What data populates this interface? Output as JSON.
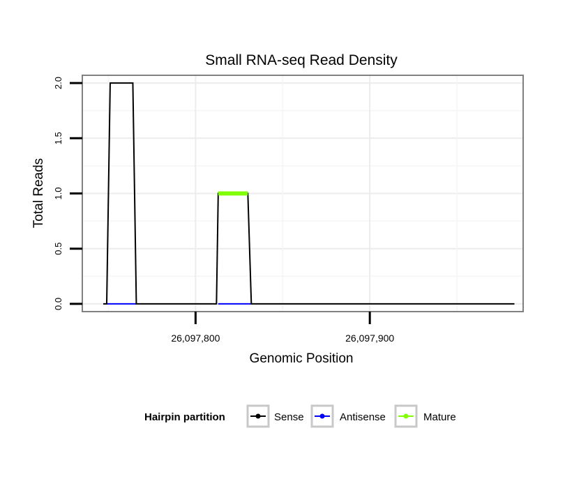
{
  "chart_data": {
    "type": "line",
    "title": "Small RNA-seq Read Density",
    "xlabel": "Genomic Position",
    "ylabel": "Total Reads",
    "xlim": [
      26097735,
      26097988
    ],
    "ylim": [
      -0.07,
      2.07
    ],
    "x_ticks": [
      26097800,
      26097900
    ],
    "x_tick_labels": [
      "26,097,800",
      "26,097,900"
    ],
    "y_ticks": [
      0,
      0.5,
      1,
      1.5,
      2
    ],
    "y_tick_labels": [
      "0.0",
      "0.5",
      "1.0",
      "1.5",
      "2.0"
    ],
    "grid": true,
    "legend": {
      "title": "Hairpin partition",
      "position": "bottom",
      "entries": [
        "Sense",
        "Antisense",
        "Mature"
      ]
    },
    "series": [
      {
        "name": "Sense",
        "color": "#000000",
        "points": [
          [
            26097747,
            0
          ],
          [
            26097749,
            0
          ],
          [
            26097751,
            2
          ],
          [
            26097764,
            2
          ],
          [
            26097766,
            0
          ],
          [
            26097812,
            0
          ],
          [
            26097813,
            1
          ],
          [
            26097830,
            1
          ],
          [
            26097832,
            0
          ],
          [
            26097983,
            0
          ]
        ]
      },
      {
        "name": "Antisense",
        "color": "#0000ff",
        "points": [
          [
            26097749,
            0
          ],
          [
            26097766,
            0
          ],
          [
            26097813,
            0
          ],
          [
            26097832,
            0
          ]
        ],
        "segments": [
          [
            0,
            1
          ],
          [
            2,
            3
          ]
        ]
      },
      {
        "name": "Mature",
        "color": "#80ff00",
        "points": [
          [
            26097813,
            1
          ],
          [
            26097830,
            1
          ]
        ]
      }
    ]
  }
}
